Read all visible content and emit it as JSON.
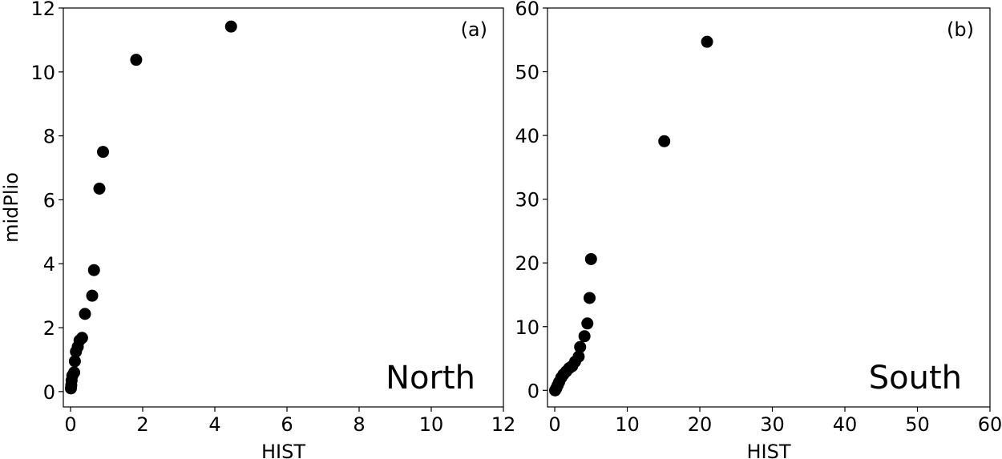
{
  "chart_data": [
    {
      "type": "scatter",
      "color": "#000000",
      "xlabel": "HIST",
      "ylabel": "midPlio",
      "tag": "(a)",
      "region": "North",
      "x": [
        4.45,
        1.82,
        0.9,
        0.8,
        0.65,
        0.6,
        0.4,
        0.32,
        0.25,
        0.2,
        0.15,
        0.12,
        0.1,
        0.05,
        0.03,
        0.02,
        0.01
      ],
      "values": [
        11.42,
        10.38,
        7.5,
        6.35,
        3.8,
        3.0,
        2.43,
        1.68,
        1.6,
        1.4,
        1.25,
        0.95,
        0.6,
        0.5,
        0.35,
        0.2,
        0.1
      ],
      "xlim": [
        -0.2,
        12
      ],
      "ylim": [
        -0.48,
        12
      ],
      "xticks": [
        0,
        2,
        4,
        6,
        8,
        10,
        12
      ],
      "yticks": [
        0,
        2,
        4,
        6,
        8,
        10,
        12
      ]
    },
    {
      "type": "scatter",
      "color": "#000000",
      "xlabel": "HIST",
      "tag": "(b)",
      "region": "South",
      "x": [
        21,
        15.1,
        5,
        4.8,
        4.5,
        4.1,
        3.5,
        3.3,
        2.8,
        2.4,
        2.0,
        1.6,
        1.2,
        0.9,
        0.6,
        0.4,
        0.2,
        0.05
      ],
      "values": [
        54.7,
        39.1,
        20.6,
        14.5,
        10.5,
        8.5,
        6.8,
        5.3,
        4.5,
        3.8,
        3.5,
        3.0,
        2.5,
        2.0,
        1.3,
        0.8,
        0.3,
        0.0
      ],
      "xlim": [
        -1,
        60
      ],
      "ylim": [
        -2.6,
        60
      ],
      "xticks": [
        0,
        10,
        20,
        30,
        40,
        50,
        60
      ],
      "yticks": [
        0,
        10,
        20,
        30,
        40,
        50,
        60
      ]
    }
  ]
}
